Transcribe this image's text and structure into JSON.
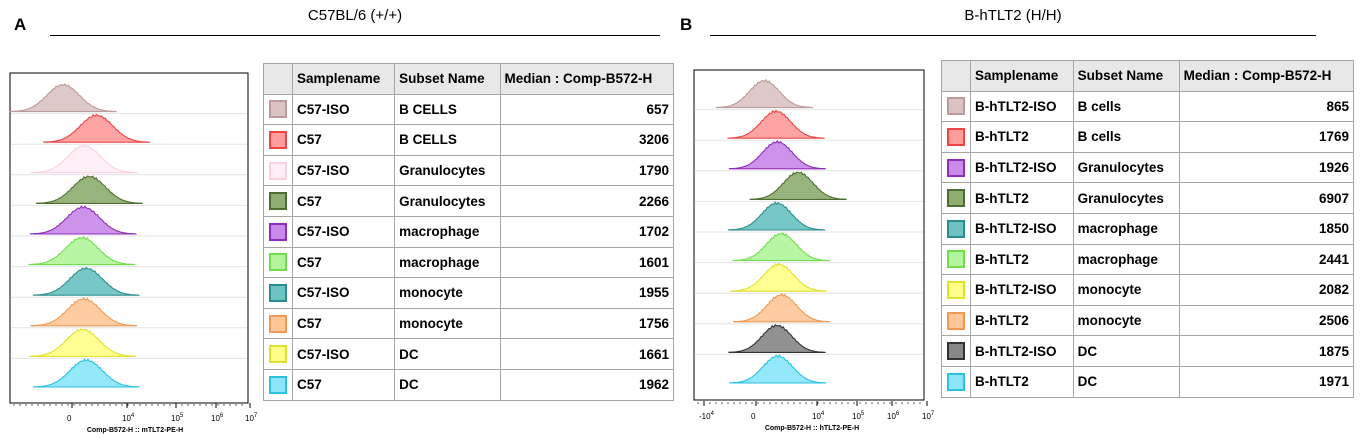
{
  "panels": [
    {
      "letter": "A",
      "title": "C57BL/6 (+/+)",
      "chart_data": {
        "type": "histogram",
        "xlabel": "Comp-B572-H :: mTLT2-PE-H",
        "x_ticks": [
          "0",
          "10^4",
          "10^5",
          "10^6",
          "10^7"
        ],
        "table_headers": [
          "Samplename",
          "Subset Name",
          "Median : Comp-B572-H"
        ],
        "rows": [
          {
            "sample": "C57-ISO",
            "subset": "B CELLS",
            "median": 657,
            "fill": "#dcc3c3",
            "stroke": "#bb9b9b"
          },
          {
            "sample": "C57",
            "subset": "B CELLS",
            "median": 3206,
            "fill": "#ff9c9c",
            "stroke": "#ee4444"
          },
          {
            "sample": "C57-ISO",
            "subset": "Granulocytes",
            "median": 1790,
            "fill": "#ffeef6",
            "stroke": "#f6d2e2"
          },
          {
            "sample": "C57",
            "subset": "Granulocytes",
            "median": 2266,
            "fill": "#8fae72",
            "stroke": "#4d6e30"
          },
          {
            "sample": "C57-ISO",
            "subset": "macrophage",
            "median": 1702,
            "fill": "#c98ae8",
            "stroke": "#8e2db8"
          },
          {
            "sample": "C57",
            "subset": "macrophage",
            "median": 1601,
            "fill": "#b2f59c",
            "stroke": "#70dd50"
          },
          {
            "sample": "C57-ISO",
            "subset": "monocyte",
            "median": 1955,
            "fill": "#6dc2c2",
            "stroke": "#2b8e8e"
          },
          {
            "sample": "C57",
            "subset": "monocyte",
            "median": 1756,
            "fill": "#ffc798",
            "stroke": "#ee9a55"
          },
          {
            "sample": "C57-ISO",
            "subset": "DC",
            "median": 1661,
            "fill": "#ffff8a",
            "stroke": "#e0e030"
          },
          {
            "sample": "C57",
            "subset": "DC",
            "median": 1962,
            "fill": "#8ae6f8",
            "stroke": "#2bc2e0"
          }
        ]
      }
    },
    {
      "letter": "B",
      "title": "B-hTLT2 (H/H)",
      "chart_data": {
        "type": "histogram",
        "xlabel": "Comp-B572-H :: hTLT2-PE-H",
        "x_ticks": [
          "-10^4",
          "0",
          "10^4",
          "10^5",
          "10^6",
          "10^7"
        ],
        "table_headers": [
          "Samplename",
          "Subset Name",
          "Median : Comp-B572-H"
        ],
        "rows": [
          {
            "sample": "B-hTLT2-ISO",
            "subset": "B cells",
            "median": 865,
            "fill": "#dcc3c3",
            "stroke": "#bb9b9b"
          },
          {
            "sample": "B-hTLT2",
            "subset": "B cells",
            "median": 1769,
            "fill": "#ff9c9c",
            "stroke": "#ee4444"
          },
          {
            "sample": "B-hTLT2-ISO",
            "subset": "Granulocytes",
            "median": 1926,
            "fill": "#c98ae8",
            "stroke": "#8e2db8"
          },
          {
            "sample": "B-hTLT2",
            "subset": "Granulocytes",
            "median": 6907,
            "fill": "#8fae72",
            "stroke": "#4d6e30"
          },
          {
            "sample": "B-hTLT2-ISO",
            "subset": "macrophage",
            "median": 1850,
            "fill": "#6dc2c2",
            "stroke": "#2b8e8e"
          },
          {
            "sample": "B-hTLT2",
            "subset": "macrophage",
            "median": 2441,
            "fill": "#b2f59c",
            "stroke": "#70dd50"
          },
          {
            "sample": "B-hTLT2-ISO",
            "subset": "monocyte",
            "median": 2082,
            "fill": "#ffff8a",
            "stroke": "#e0e030"
          },
          {
            "sample": "B-hTLT2",
            "subset": "monocyte",
            "median": 2506,
            "fill": "#ffc798",
            "stroke": "#ee9a55"
          },
          {
            "sample": "B-hTLT2-ISO",
            "subset": "DC",
            "median": 1875,
            "fill": "#888888",
            "stroke": "#333333"
          },
          {
            "sample": "B-hTLT2",
            "subset": "DC",
            "median": 1971,
            "fill": "#8ae6f8",
            "stroke": "#2bc2e0"
          }
        ]
      }
    }
  ]
}
